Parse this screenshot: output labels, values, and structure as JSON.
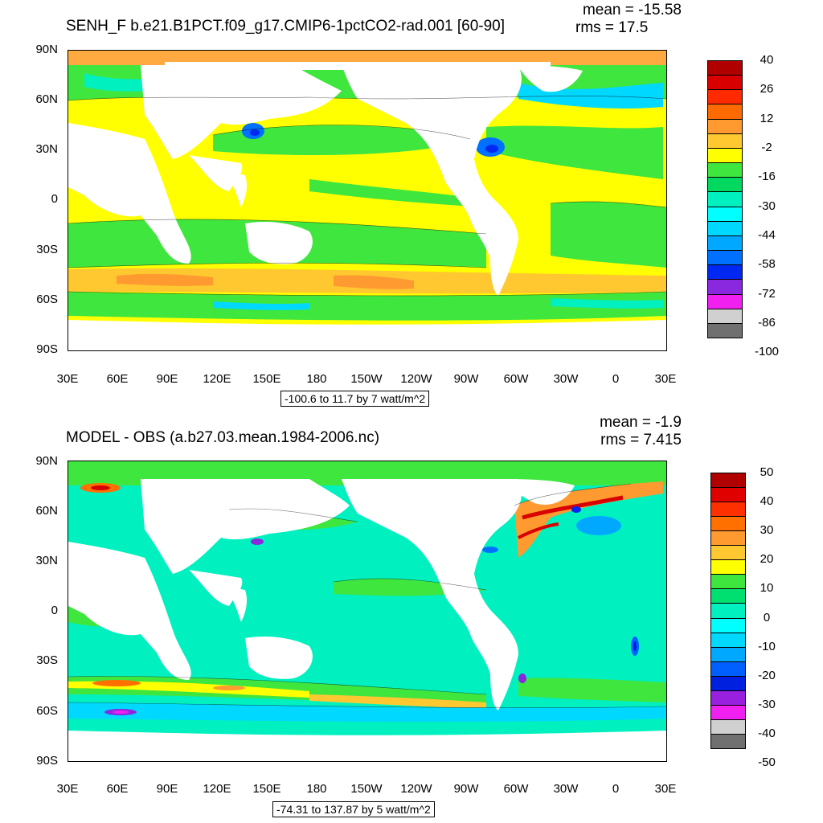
{
  "panel1": {
    "title": "SENH_F b.e21.B1PCT.f09_g17.CMIP6-1pctCO2-rad.001 [60-90]",
    "mean": "mean = -15.58",
    "rms": "rms = 17.5",
    "range": "-100.6 to 11.7 by 7 watt/m^2",
    "colorbar": {
      "labels": [
        "40",
        "26",
        "12",
        "-2",
        "-16",
        "-30",
        "-44",
        "-58",
        "-72",
        "-86",
        "-100"
      ],
      "colors": [
        "#b00000",
        "#d80000",
        "#ff2a00",
        "#ff6a00",
        "#ff9a30",
        "#ffc830",
        "#ffff00",
        "#3ee63e",
        "#00d860",
        "#00f0c0",
        "#00ffff",
        "#00d8ff",
        "#00a8ff",
        "#0070ff",
        "#0028f0",
        "#8a28e0",
        "#f020f0",
        "#d0d0d0",
        "#707070"
      ]
    }
  },
  "panel2": {
    "title": "MODEL - OBS (a.b27.03.mean.1984-2006.nc)",
    "mean": "mean = -1.9",
    "rms": "rms = 7.415",
    "range": "-74.31 to 137.87 by 5 watt/m^2",
    "colorbar": {
      "labels": [
        "50",
        "40",
        "30",
        "20",
        "10",
        "0",
        "-10",
        "-20",
        "-30",
        "-40",
        "-50"
      ],
      "colors": [
        "#b00000",
        "#e00000",
        "#ff3000",
        "#ff7000",
        "#ff9a30",
        "#ffc830",
        "#ffff00",
        "#3ee63e",
        "#00e070",
        "#00f0c0",
        "#00ffff",
        "#00d8ff",
        "#00a8ff",
        "#0060ff",
        "#0020e0",
        "#9a20e0",
        "#f020f0",
        "#d0d0d0",
        "#707070"
      ]
    }
  },
  "axes": {
    "lat_labels": [
      "90N",
      "60N",
      "30N",
      "0",
      "30S",
      "60S",
      "90S"
    ],
    "lon_labels": [
      "30E",
      "60E",
      "90E",
      "120E",
      "150E",
      "180",
      "150W",
      "120W",
      "90W",
      "60W",
      "30W",
      "0",
      "30E"
    ]
  }
}
